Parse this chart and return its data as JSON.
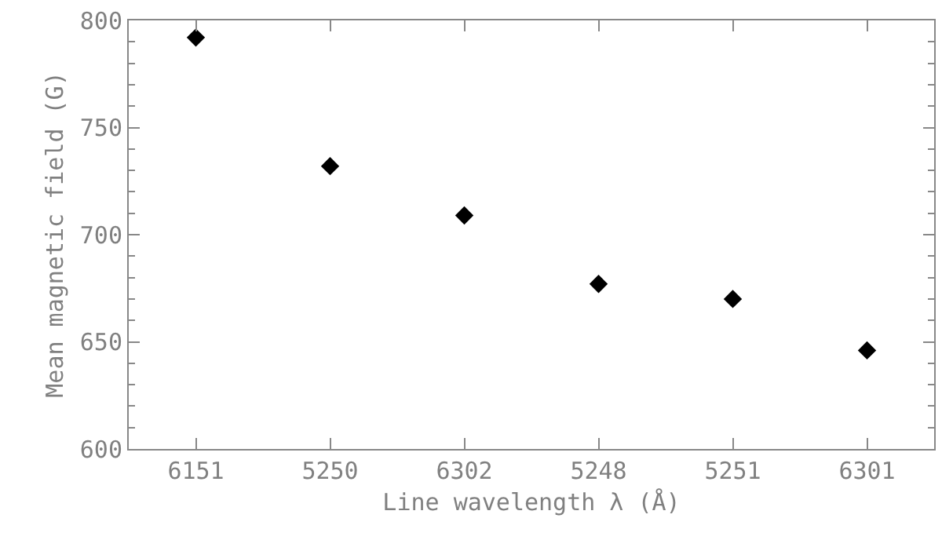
{
  "chart_data": {
    "type": "scatter",
    "xlabel": "Line wavelength λ (Å)",
    "ylabel": "Mean magnetic field (G)",
    "categories": [
      "6151",
      "5250",
      "6302",
      "5248",
      "5251",
      "6301"
    ],
    "series": [
      {
        "color": "#000000",
        "values": [
          792,
          732,
          709,
          677,
          670,
          646
        ]
      }
    ],
    "ylim": [
      600,
      800
    ],
    "yticks": [
      600,
      650,
      700,
      750,
      800
    ],
    "marker": "diamond"
  }
}
